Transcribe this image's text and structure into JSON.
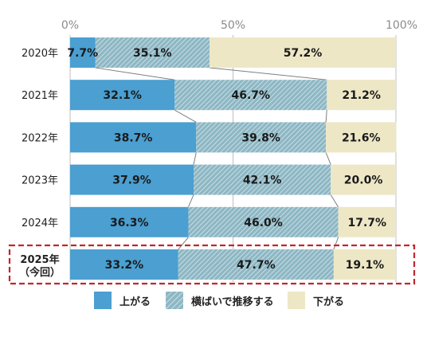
{
  "chart_data": {
    "type": "bar",
    "orientation": "horizontal",
    "stacked": "percent",
    "categories": [
      "2020年",
      "2021年",
      "2022年",
      "2023年",
      "2024年",
      "2025年"
    ],
    "category_notes": [
      "",
      "",
      "",
      "",
      "",
      "（今回）"
    ],
    "highlighted_category": "2025年",
    "series": [
      {
        "name": "上がる",
        "values": [
          7.7,
          32.1,
          38.7,
          37.9,
          36.3,
          33.2
        ],
        "labels": [
          "7.7%",
          "32.1%",
          "38.7%",
          "37.9%",
          "36.3%",
          "33.2%"
        ]
      },
      {
        "name": "横ばいで推移する",
        "values": [
          35.1,
          46.7,
          39.8,
          42.1,
          46.0,
          47.7
        ],
        "labels": [
          "35.1%",
          "46.7%",
          "39.8%",
          "42.1%",
          "46.0%",
          "47.7%"
        ]
      },
      {
        "name": "下がる",
        "values": [
          57.2,
          21.2,
          21.6,
          20.0,
          17.7,
          19.1
        ],
        "labels": [
          "57.2%",
          "21.2%",
          "21.6%",
          "20.0%",
          "17.7%",
          "19.1%"
        ]
      }
    ],
    "x_ticks": [
      0,
      50,
      100
    ],
    "x_tick_labels": [
      "0%",
      "50%",
      "100%"
    ],
    "xlim": [
      0,
      100
    ],
    "colors": {
      "up": "#4b9fd1",
      "flat": "#8db7c4",
      "down": "#ede7c6",
      "highlight_box": "#c0272d",
      "connector": "#7f7f7f"
    },
    "legend_position": "bottom",
    "title": "",
    "xlabel": "",
    "ylabel": ""
  }
}
